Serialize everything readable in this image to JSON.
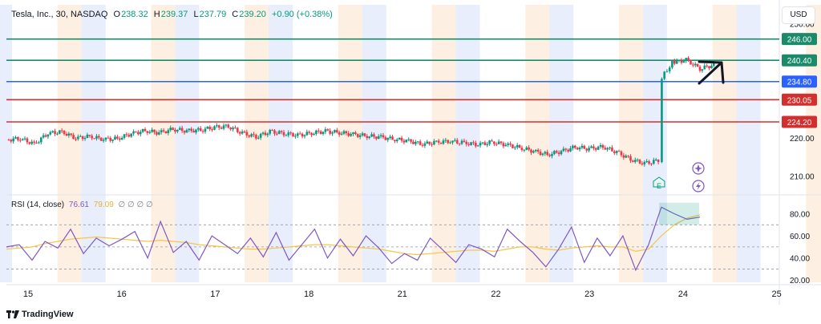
{
  "header": {
    "symbol": "Tesla, Inc., 30, NASDAQ",
    "open_label": "O",
    "open": "238.32",
    "high_label": "H",
    "high": "239.37",
    "low_label": "L",
    "low": "237.79",
    "close_label": "C",
    "close": "239.20",
    "change": "+0.90 (+0.38%)"
  },
  "rsi_header": {
    "label": "RSI (14, close)",
    "rsi": "76.61",
    "ma": "79.09",
    "zeros": "∅ ∅ ∅ ∅"
  },
  "currency_button": "USD",
  "brand": "TradingView",
  "colors": {
    "up": "#089981",
    "down": "#f23645",
    "rsi": "#7e57c2",
    "rsi_ma": "#f7c548",
    "level_green": "#1b8a6a",
    "level_blue": "#2962ff",
    "level_red": "#d1302f",
    "session_blue": "#e8eefc",
    "session_orange": "#fdf0e2"
  },
  "events": {
    "earnings_label": "E",
    "icons": [
      "sparkle-icon",
      "lightning-icon"
    ]
  },
  "chart_data": [
    {
      "type": "candlestick",
      "title": "Tesla, Inc., 30, NASDAQ",
      "x_ticks": [
        "15",
        "16",
        "17",
        "18",
        "21",
        "22",
        "23",
        "24",
        "25"
      ],
      "y_ticks": [
        210,
        220,
        250
      ],
      "ylim": [
        205,
        255
      ],
      "levels": [
        {
          "value": 246.0,
          "label": "246.00",
          "color": "#1b8a6a"
        },
        {
          "value": 240.4,
          "label": "240.40",
          "color": "#1b8a6a"
        },
        {
          "value": 234.8,
          "label": "234.80",
          "color": "#2962ff"
        },
        {
          "value": 230.05,
          "label": "230.05",
          "color": "#d1302f"
        },
        {
          "value": 224.2,
          "label": "224.20",
          "color": "#d1302f"
        }
      ],
      "close_path": [
        [
          0,
          219.5
        ],
        [
          0.2,
          219.8
        ],
        [
          0.4,
          218.4
        ],
        [
          0.6,
          221.2
        ],
        [
          0.8,
          221.6
        ],
        [
          1.0,
          219.9
        ],
        [
          1.2,
          220.4
        ],
        [
          1.4,
          219.6
        ],
        [
          1.6,
          219.8
        ],
        [
          1.8,
          221.1
        ],
        [
          2.0,
          221.9
        ],
        [
          2.2,
          221.3
        ],
        [
          2.4,
          222.3
        ],
        [
          2.6,
          221.8
        ],
        [
          2.8,
          222.1
        ],
        [
          3.0,
          222.7
        ],
        [
          3.2,
          223.1
        ],
        [
          3.4,
          221.2
        ],
        [
          3.6,
          220.3
        ],
        [
          3.8,
          221.6
        ],
        [
          4.0,
          221.2
        ],
        [
          4.2,
          220.6
        ],
        [
          4.4,
          221.3
        ],
        [
          4.6,
          221.7
        ],
        [
          4.8,
          221.4
        ],
        [
          5.0,
          220.9
        ],
        [
          5.2,
          220.5
        ],
        [
          5.4,
          220.2
        ],
        [
          5.6,
          219.6
        ],
        [
          5.8,
          219.2
        ],
        [
          6.0,
          218.3
        ],
        [
          6.2,
          218.9
        ],
        [
          6.4,
          219.1
        ],
        [
          6.6,
          218.7
        ],
        [
          6.8,
          218.2
        ],
        [
          7.0,
          218.9
        ],
        [
          7.2,
          218.2
        ],
        [
          7.4,
          217.4
        ],
        [
          7.6,
          216.5
        ],
        [
          7.8,
          215.6
        ],
        [
          8.0,
          216.4
        ],
        [
          8.2,
          217.6
        ],
        [
          8.4,
          217.1
        ],
        [
          8.6,
          217.7
        ],
        [
          8.8,
          216.2
        ],
        [
          9.0,
          214.4
        ],
        [
          9.2,
          213.2
        ],
        [
          9.4,
          214.1
        ],
        [
          9.45,
          236.0
        ],
        [
          9.6,
          239.8
        ],
        [
          9.8,
          240.5
        ],
        [
          10.0,
          238.2
        ],
        [
          10.2,
          239.2
        ]
      ],
      "price_change_arrow": "up"
    },
    {
      "type": "line",
      "title": "RSI (14, close)",
      "y_ticks": [
        20,
        40,
        60,
        80
      ],
      "ylim": [
        18,
        92
      ],
      "bands": [
        30,
        50,
        70
      ],
      "series": [
        {
          "name": "RSI",
          "values": [
            50,
            52,
            38,
            55,
            49,
            66,
            44,
            58,
            51,
            57,
            64,
            40,
            73,
            45,
            55,
            38,
            60,
            52,
            44,
            58,
            41,
            63,
            38,
            52,
            66,
            40,
            57,
            42,
            60,
            49,
            35,
            44,
            38,
            58,
            47,
            36,
            52,
            48,
            41,
            66,
            55,
            45,
            32,
            48,
            68,
            36,
            58,
            42,
            60,
            29,
            52,
            86,
            80,
            75,
            77
          ]
        },
        {
          "name": "MA",
          "values": [
            48,
            49,
            50,
            53,
            55,
            57,
            58,
            59,
            58,
            57,
            56,
            55,
            56,
            55,
            54,
            52,
            51,
            50,
            49,
            48,
            48,
            49,
            50,
            51,
            52,
            52,
            51,
            50,
            49,
            48,
            46,
            44,
            43,
            44,
            45,
            46,
            47,
            47,
            46,
            48,
            50,
            50,
            48,
            47,
            49,
            50,
            51,
            50,
            50,
            46,
            48,
            60,
            70,
            76,
            79
          ]
        }
      ]
    }
  ]
}
